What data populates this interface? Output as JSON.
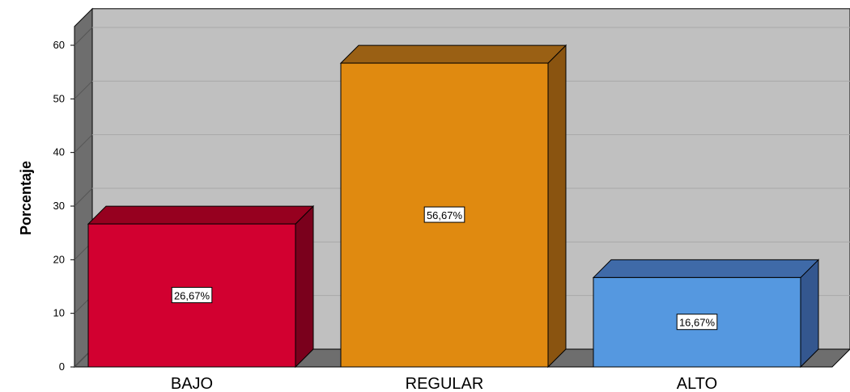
{
  "chart_data": {
    "type": "bar",
    "categories": [
      "BAJO",
      "REGULAR",
      "ALTO"
    ],
    "values": [
      26.67,
      56.67,
      16.67
    ],
    "data_labels": [
      "26,67%",
      "56,67%",
      "16,67%"
    ],
    "colors": [
      "#d20030",
      "#e08a10",
      "#5598e0"
    ],
    "side_colors": [
      "#7a001c",
      "#8a5410",
      "#34578f"
    ],
    "top_colors": [
      "#96001f",
      "#9a6014",
      "#3f6aa8"
    ],
    "ylabel": "Porcentaje",
    "xlabel": "",
    "ylim": [
      0,
      60
    ],
    "yticks": [
      "0",
      "10",
      "20",
      "30",
      "40",
      "50",
      "60"
    ],
    "grid": true,
    "style": "3d",
    "background": "#c0c0c0"
  }
}
